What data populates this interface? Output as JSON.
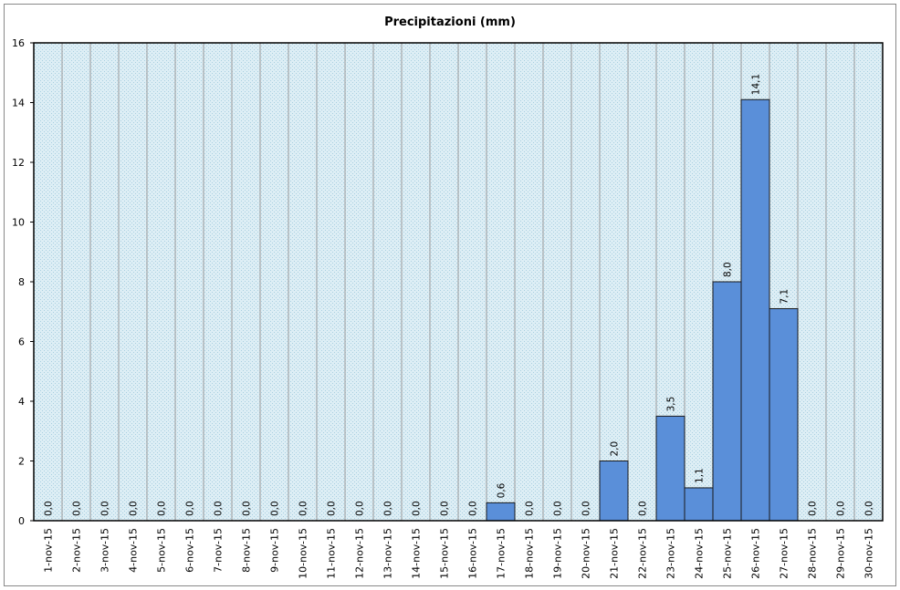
{
  "chart_data": {
    "type": "bar",
    "title": "Precipitazioni (mm)",
    "xlabel": "",
    "ylabel": "",
    "ylim": [
      0,
      16
    ],
    "yticks": [
      0,
      2,
      4,
      6,
      8,
      10,
      12,
      14,
      16
    ],
    "grid": "vertical",
    "legend": "none",
    "categories": [
      "1-nov-15",
      "2-nov-15",
      "3-nov-15",
      "4-nov-15",
      "5-nov-15",
      "6-nov-15",
      "7-nov-15",
      "8-nov-15",
      "9-nov-15",
      "10-nov-15",
      "11-nov-15",
      "12-nov-15",
      "13-nov-15",
      "14-nov-15",
      "15-nov-15",
      "16-nov-15",
      "17-nov-15",
      "18-nov-15",
      "19-nov-15",
      "20-nov-15",
      "21-nov-15",
      "22-nov-15",
      "23-nov-15",
      "24-nov-15",
      "25-nov-15",
      "26-nov-15",
      "27-nov-15",
      "28-nov-15",
      "29-nov-15",
      "30-nov-15"
    ],
    "values": [
      0,
      0,
      0,
      0,
      0,
      0,
      0,
      0,
      0,
      0,
      0,
      0,
      0,
      0,
      0,
      0,
      0.6,
      0,
      0,
      0,
      2.0,
      0,
      3.5,
      1.1,
      8.0,
      14.1,
      7.1,
      0,
      0,
      0
    ],
    "data_labels": [
      "0,0",
      "0,0",
      "0,0",
      "0,0",
      "0,0",
      "0,0",
      "0,0",
      "0,0",
      "0,0",
      "0,0",
      "0,0",
      "0,0",
      "0,0",
      "0,0",
      "0,0",
      "0,0",
      "0,6",
      "0,0",
      "0,0",
      "0,0",
      "2,0",
      "0,0",
      "3,5",
      "1,1",
      "8,0",
      "14,1",
      "7,1",
      "0,0",
      "0,0",
      "0,0"
    ],
    "colors": {
      "bar": "#5a8fd9",
      "bar_border": "#1a1a1a",
      "plot_bg": "#dcecf4",
      "gridline": "#9a9a9a",
      "plot_border": "#000000"
    }
  }
}
